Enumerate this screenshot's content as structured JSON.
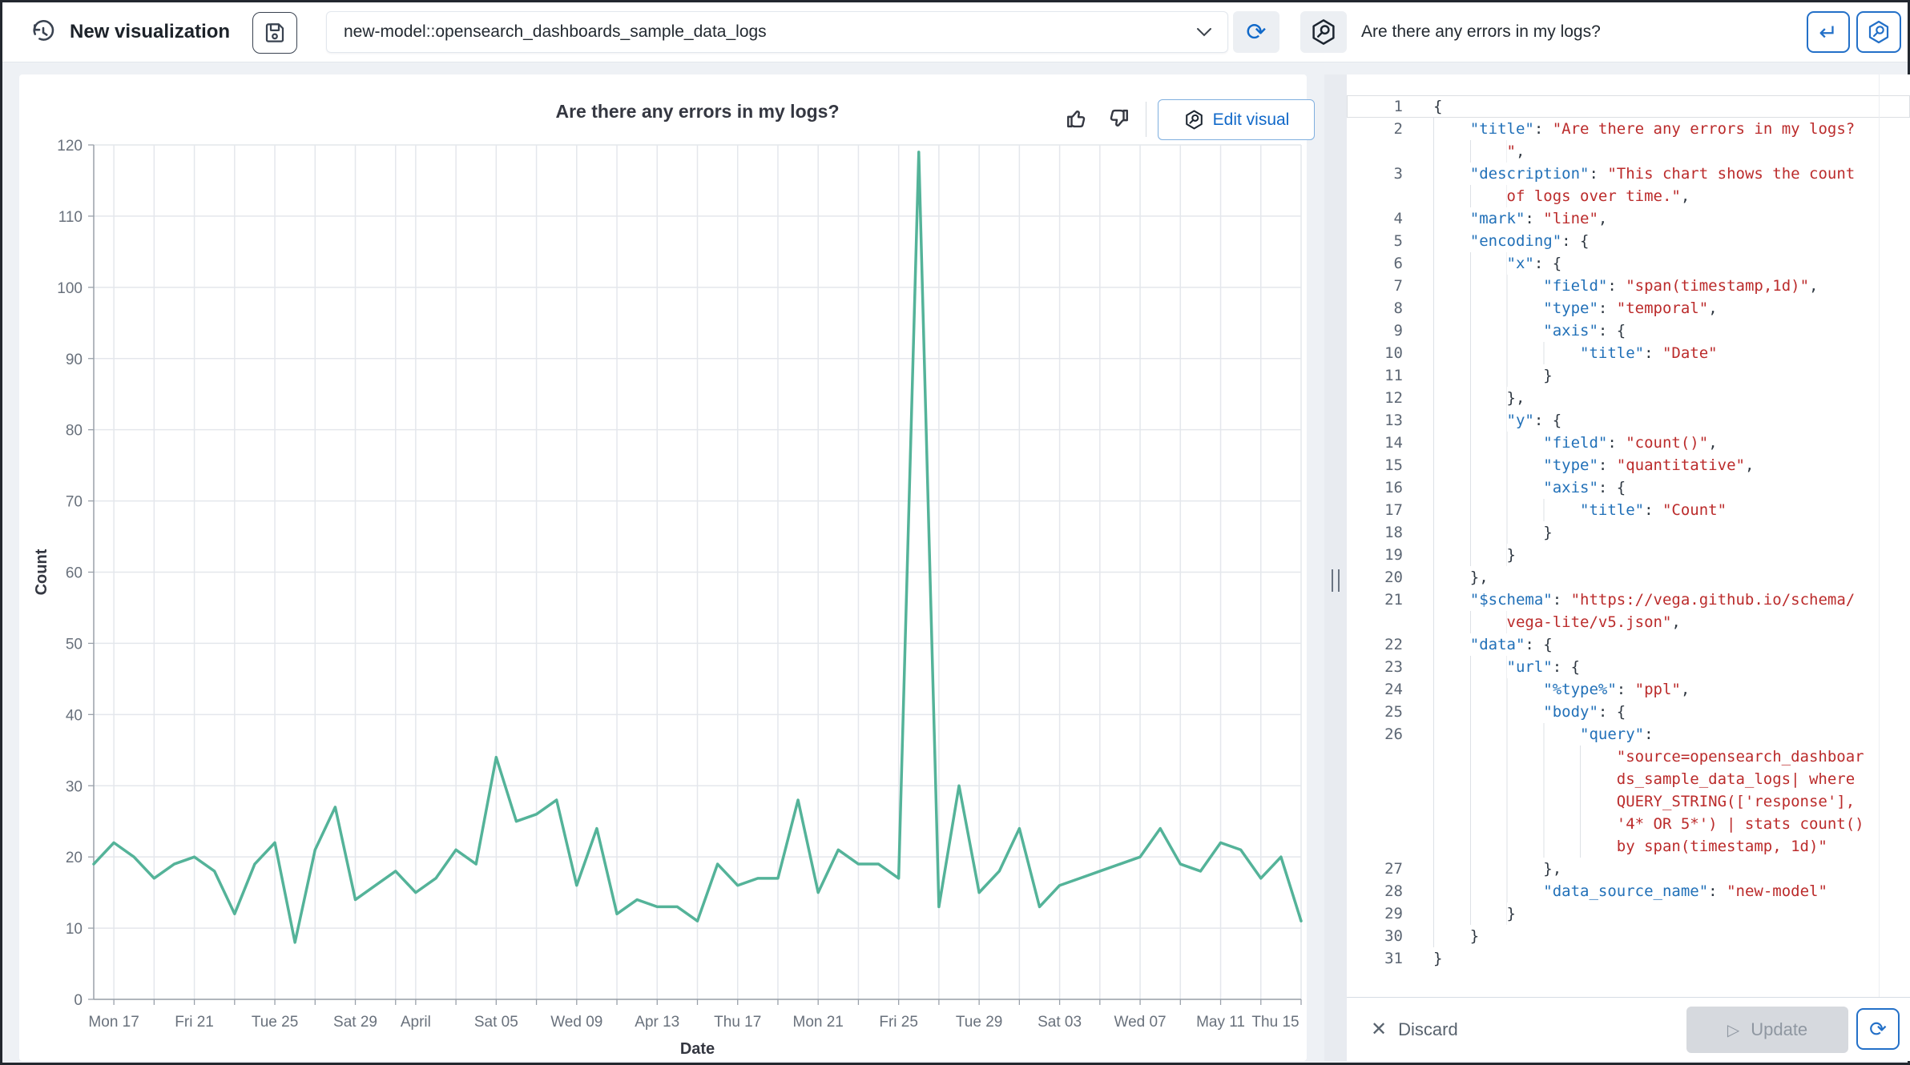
{
  "topbar": {
    "title": "New visualization",
    "model_select": {
      "value": "new-model::opensearch_dashboards_sample_data_logs"
    },
    "ask_input": {
      "value": "Are there any errors in my logs?"
    },
    "accent_color": "#1169c9"
  },
  "chart_panel": {
    "title": "Are there any errors in my logs?",
    "edit_button": "Edit visual"
  },
  "chart_data": {
    "type": "line",
    "title": "Are there any errors in my logs?",
    "xlabel": "Date",
    "ylabel": "Count",
    "ylim": [
      0,
      120
    ],
    "grid": true,
    "legend_position": "none",
    "line_color": "#54b399",
    "y_ticks": [
      0,
      10,
      20,
      30,
      40,
      50,
      60,
      70,
      80,
      90,
      100,
      110,
      120
    ],
    "x_tick_labels": [
      {
        "day": 1,
        "label": "Mon 17"
      },
      {
        "day": 5,
        "label": "Fri 21"
      },
      {
        "day": 9,
        "label": "Tue 25"
      },
      {
        "day": 13,
        "label": "Sat 29"
      },
      {
        "day": 16,
        "label": "April"
      },
      {
        "day": 20,
        "label": "Sat 05"
      },
      {
        "day": 24,
        "label": "Wed 09"
      },
      {
        "day": 28,
        "label": "Apr 13"
      },
      {
        "day": 32,
        "label": "Thu 17"
      },
      {
        "day": 36,
        "label": "Mon 21"
      },
      {
        "day": 40,
        "label": "Fri 25"
      },
      {
        "day": 44,
        "label": "Tue 29"
      },
      {
        "day": 48,
        "label": "Sat 03"
      },
      {
        "day": 52,
        "label": "Wed 07"
      },
      {
        "day": 56,
        "label": "May 11"
      },
      {
        "day": 60,
        "label": "Thu 15"
      }
    ],
    "minor_grid_days": [
      1,
      3,
      5,
      7,
      9,
      11,
      13,
      15,
      16,
      18,
      20,
      22,
      24,
      26,
      28,
      30,
      32,
      34,
      36,
      38,
      40,
      42,
      44,
      46,
      48,
      50,
      52,
      54,
      56,
      58,
      60
    ],
    "dates": [
      "Mar 16",
      "Mar 17",
      "Mar 18",
      "Mar 19",
      "Mar 20",
      "Mar 21",
      "Mar 22",
      "Mar 23",
      "Mar 24",
      "Mar 25",
      "Mar 26",
      "Mar 27",
      "Mar 28",
      "Mar 29",
      "Mar 30",
      "Mar 31",
      "Apr 1",
      "Apr 2",
      "Apr 3",
      "Apr 4",
      "Apr 5",
      "Apr 6",
      "Apr 7",
      "Apr 8",
      "Apr 9",
      "Apr 10",
      "Apr 11",
      "Apr 12",
      "Apr 13",
      "Apr 14",
      "Apr 15",
      "Apr 16",
      "Apr 17",
      "Apr 18",
      "Apr 19",
      "Apr 20",
      "Apr 21",
      "Apr 22",
      "Apr 23",
      "Apr 24",
      "Apr 25",
      "Apr 26",
      "Apr 27",
      "Apr 28",
      "Apr 29",
      "Apr 30",
      "May 1",
      "May 2",
      "May 3",
      "May 4",
      "May 5",
      "May 6",
      "May 7",
      "May 8",
      "May 9",
      "May 10",
      "May 11",
      "May 12",
      "May 13",
      "May 14",
      "May 15"
    ],
    "values": [
      19,
      22,
      20,
      17,
      19,
      20,
      18,
      12,
      19,
      22,
      8,
      21,
      27,
      14,
      16,
      18,
      15,
      17,
      21,
      19,
      34,
      25,
      26,
      28,
      16,
      24,
      12,
      14,
      13,
      13,
      11,
      19,
      16,
      17,
      17,
      28,
      15,
      21,
      19,
      19,
      17,
      119,
      13,
      30,
      15,
      18,
      24,
      13,
      16,
      17,
      18,
      19,
      20,
      24,
      19,
      18,
      22,
      21,
      17,
      20,
      11
    ]
  },
  "editor": {
    "colors": {
      "key": "#2170b8",
      "string": "#bb2b2b",
      "punct": "#2f3842",
      "line_number": "#5c6673"
    },
    "lines": [
      {
        "n": 1,
        "cur": true,
        "rows": [
          {
            "i": 0,
            "t": [
              [
                "p",
                "{"
              ]
            ]
          }
        ]
      },
      {
        "n": 2,
        "rows": [
          {
            "i": 4,
            "t": [
              [
                "k",
                "\"title\""
              ],
              [
                "p",
                ": "
              ],
              [
                "s",
                "\"Are there any errors in my logs?"
              ]
            ]
          },
          {
            "i": 8,
            "t": [
              [
                "s",
                "\""
              ],
              [
                "p",
                ","
              ]
            ]
          }
        ]
      },
      {
        "n": 3,
        "rows": [
          {
            "i": 4,
            "t": [
              [
                "k",
                "\"description\""
              ],
              [
                "p",
                ": "
              ],
              [
                "s",
                "\"This chart shows the count"
              ]
            ]
          },
          {
            "i": 8,
            "t": [
              [
                "s",
                "of logs over time.\""
              ],
              [
                "p",
                ","
              ]
            ]
          }
        ]
      },
      {
        "n": 4,
        "rows": [
          {
            "i": 4,
            "t": [
              [
                "k",
                "\"mark\""
              ],
              [
                "p",
                ": "
              ],
              [
                "s",
                "\"line\""
              ],
              [
                "p",
                ","
              ]
            ]
          }
        ]
      },
      {
        "n": 5,
        "rows": [
          {
            "i": 4,
            "t": [
              [
                "k",
                "\"encoding\""
              ],
              [
                "p",
                ": {"
              ]
            ]
          }
        ]
      },
      {
        "n": 6,
        "rows": [
          {
            "i": 8,
            "t": [
              [
                "k",
                "\"x\""
              ],
              [
                "p",
                ": {"
              ]
            ]
          }
        ]
      },
      {
        "n": 7,
        "rows": [
          {
            "i": 12,
            "t": [
              [
                "k",
                "\"field\""
              ],
              [
                "p",
                ": "
              ],
              [
                "s",
                "\"span(timestamp,1d)\""
              ],
              [
                "p",
                ","
              ]
            ]
          }
        ]
      },
      {
        "n": 8,
        "rows": [
          {
            "i": 12,
            "t": [
              [
                "k",
                "\"type\""
              ],
              [
                "p",
                ": "
              ],
              [
                "s",
                "\"temporal\""
              ],
              [
                "p",
                ","
              ]
            ]
          }
        ]
      },
      {
        "n": 9,
        "rows": [
          {
            "i": 12,
            "t": [
              [
                "k",
                "\"axis\""
              ],
              [
                "p",
                ": {"
              ]
            ]
          }
        ]
      },
      {
        "n": 10,
        "rows": [
          {
            "i": 16,
            "t": [
              [
                "k",
                "\"title\""
              ],
              [
                "p",
                ": "
              ],
              [
                "s",
                "\"Date\""
              ]
            ]
          }
        ]
      },
      {
        "n": 11,
        "rows": [
          {
            "i": 12,
            "t": [
              [
                "p",
                "}"
              ]
            ]
          }
        ]
      },
      {
        "n": 12,
        "rows": [
          {
            "i": 8,
            "t": [
              [
                "p",
                "},"
              ]
            ]
          }
        ]
      },
      {
        "n": 13,
        "rows": [
          {
            "i": 8,
            "t": [
              [
                "k",
                "\"y\""
              ],
              [
                "p",
                ": {"
              ]
            ]
          }
        ]
      },
      {
        "n": 14,
        "rows": [
          {
            "i": 12,
            "t": [
              [
                "k",
                "\"field\""
              ],
              [
                "p",
                ": "
              ],
              [
                "s",
                "\"count()\""
              ],
              [
                "p",
                ","
              ]
            ]
          }
        ]
      },
      {
        "n": 15,
        "rows": [
          {
            "i": 12,
            "t": [
              [
                "k",
                "\"type\""
              ],
              [
                "p",
                ": "
              ],
              [
                "s",
                "\"quantitative\""
              ],
              [
                "p",
                ","
              ]
            ]
          }
        ]
      },
      {
        "n": 16,
        "rows": [
          {
            "i": 12,
            "t": [
              [
                "k",
                "\"axis\""
              ],
              [
                "p",
                ": {"
              ]
            ]
          }
        ]
      },
      {
        "n": 17,
        "rows": [
          {
            "i": 16,
            "t": [
              [
                "k",
                "\"title\""
              ],
              [
                "p",
                ": "
              ],
              [
                "s",
                "\"Count\""
              ]
            ]
          }
        ]
      },
      {
        "n": 18,
        "rows": [
          {
            "i": 12,
            "t": [
              [
                "p",
                "}"
              ]
            ]
          }
        ]
      },
      {
        "n": 19,
        "rows": [
          {
            "i": 8,
            "t": [
              [
                "p",
                "}"
              ]
            ]
          }
        ]
      },
      {
        "n": 20,
        "rows": [
          {
            "i": 4,
            "t": [
              [
                "p",
                "},"
              ]
            ]
          }
        ]
      },
      {
        "n": 21,
        "rows": [
          {
            "i": 4,
            "t": [
              [
                "k",
                "\"$schema\""
              ],
              [
                "p",
                ": "
              ],
              [
                "s",
                "\"https://vega.github.io/schema/"
              ]
            ]
          },
          {
            "i": 8,
            "t": [
              [
                "s",
                "vega-lite/v5.json\""
              ],
              [
                "p",
                ","
              ]
            ]
          }
        ]
      },
      {
        "n": 22,
        "rows": [
          {
            "i": 4,
            "t": [
              [
                "k",
                "\"data\""
              ],
              [
                "p",
                ": {"
              ]
            ]
          }
        ]
      },
      {
        "n": 23,
        "rows": [
          {
            "i": 8,
            "t": [
              [
                "k",
                "\"url\""
              ],
              [
                "p",
                ": {"
              ]
            ]
          }
        ]
      },
      {
        "n": 24,
        "rows": [
          {
            "i": 12,
            "t": [
              [
                "k",
                "\"%type%\""
              ],
              [
                "p",
                ": "
              ],
              [
                "s",
                "\"ppl\""
              ],
              [
                "p",
                ","
              ]
            ]
          }
        ]
      },
      {
        "n": 25,
        "rows": [
          {
            "i": 12,
            "t": [
              [
                "k",
                "\"body\""
              ],
              [
                "p",
                ": {"
              ]
            ]
          }
        ]
      },
      {
        "n": 26,
        "rows": [
          {
            "i": 16,
            "t": [
              [
                "k",
                "\"query\""
              ],
              [
                "p",
                ":"
              ]
            ]
          },
          {
            "i": 20,
            "t": [
              [
                "s",
                "\"source=opensearch_dashboar"
              ]
            ]
          },
          {
            "i": 20,
            "t": [
              [
                "s",
                "ds_sample_data_logs| where"
              ]
            ]
          },
          {
            "i": 20,
            "t": [
              [
                "s",
                "QUERY_STRING(['response'],"
              ]
            ]
          },
          {
            "i": 20,
            "t": [
              [
                "s",
                "'4* OR 5*') | stats count()"
              ]
            ]
          },
          {
            "i": 20,
            "t": [
              [
                "s",
                "by span(timestamp, 1d)\""
              ]
            ]
          }
        ]
      },
      {
        "n": 27,
        "rows": [
          {
            "i": 12,
            "t": [
              [
                "p",
                "},"
              ]
            ]
          }
        ]
      },
      {
        "n": 28,
        "rows": [
          {
            "i": 12,
            "t": [
              [
                "k",
                "\"data_source_name\""
              ],
              [
                "p",
                ": "
              ],
              [
                "s",
                "\"new-model\""
              ]
            ]
          }
        ]
      },
      {
        "n": 29,
        "rows": [
          {
            "i": 8,
            "t": [
              [
                "p",
                "}"
              ]
            ]
          }
        ]
      },
      {
        "n": 30,
        "rows": [
          {
            "i": 4,
            "t": [
              [
                "p",
                "}"
              ]
            ]
          }
        ]
      },
      {
        "n": 31,
        "rows": [
          {
            "i": 0,
            "t": [
              [
                "p",
                "}"
              ]
            ]
          }
        ]
      }
    ]
  },
  "footer": {
    "discard": "Discard",
    "update": "Update"
  }
}
